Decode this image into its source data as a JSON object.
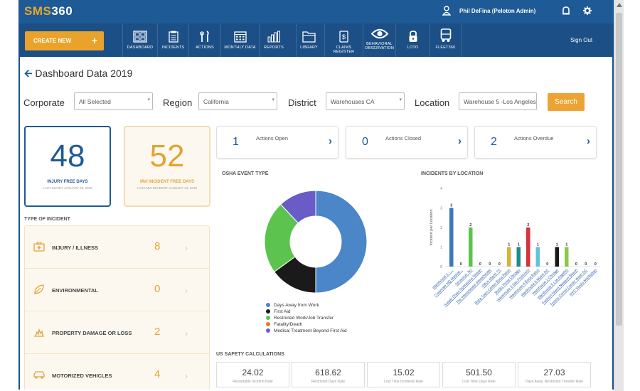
{
  "app": {
    "logo_main": "SMS",
    "logo_num": "360",
    "user": "Phil DeFina (Peloton Admin)",
    "sign_out": "Sign Out"
  },
  "nav": {
    "create_new": "CREATE NEW",
    "items": [
      {
        "label": "DASHBOARD",
        "icon": "dashboard-icon"
      },
      {
        "label": "INCIDENTS",
        "icon": "clipboard-icon"
      },
      {
        "label": "ACTIONS",
        "icon": "tools-icon"
      },
      {
        "label": "MONTHLY DATA",
        "icon": "calendar-icon"
      },
      {
        "label": "REPORTS",
        "icon": "bar-chart-icon"
      },
      {
        "label": "LIBRARY",
        "icon": "folder-icon"
      },
      {
        "label": "CLAIMS REGISTER",
        "icon": "document-dollar-icon"
      },
      {
        "label": "BEHAVIORAL",
        "label2": "OBSERVATION",
        "icon": "eye-icon"
      },
      {
        "label": "LOTO",
        "icon": "lock-icon"
      },
      {
        "label": "FLEET360",
        "icon": "truck-icon"
      }
    ]
  },
  "page": {
    "title": "Dashboard Data 2019"
  },
  "filters": {
    "corporate_label": "Corporate",
    "corporate_value": "All Selected",
    "region_label": "Region",
    "region_value": "California",
    "district_label": "District",
    "district_value": "Warehouses CA",
    "location_label": "Location",
    "location_value": "Warehouse 5 -Los Angeles",
    "search_label": "Search"
  },
  "kpi": {
    "injury": {
      "value": "48",
      "caption": "INJURY FREE DAYS",
      "sub": "LAST INJURY JANUARY 25, 2018",
      "color": "#1e5a96"
    },
    "mvi": {
      "value": "52",
      "caption": "MVI INCIDENT FREE DAYS",
      "sub": "LAST MVI INCIDENT JANUARY 21, 2018",
      "color": "#e3a336"
    }
  },
  "actions": [
    {
      "count": "1",
      "label": "Actions Open"
    },
    {
      "count": "0",
      "label": "Actions Closed"
    },
    {
      "count": "2",
      "label": "Actions Overdue"
    }
  ],
  "type_of_incident": {
    "title": "TYPE OF INCIDENT",
    "rows": [
      {
        "name": "INJURY / ILLNESS",
        "count": "8",
        "icon": "first-aid-icon"
      },
      {
        "name": "ENVIRONMENTAL",
        "count": "0",
        "icon": "leaf-icon"
      },
      {
        "name": "PROPERTY DAMAGE OR LOSS",
        "count": "2",
        "icon": "fire-icon"
      },
      {
        "name": "MOTORIZED VEHICLES",
        "count": "4",
        "icon": "car-icon"
      }
    ]
  },
  "osha": {
    "title": "OSHA EVENT TYPE"
  },
  "incidents_by_location": {
    "title": "INCIDENTS BY LOCATION"
  },
  "safety": {
    "title": "US SAFETY CALCULATIONS",
    "items": [
      {
        "value": "24.02",
        "label": "Recordable Incident Rate"
      },
      {
        "value": "618.62",
        "label": "Restricted Days Rate"
      },
      {
        "value": "15.02",
        "label": "Lost Time Incidents Rate"
      },
      {
        "value": "501.50",
        "label": "Lost Time Days Rate"
      },
      {
        "value": "27.03",
        "label": "Days Away, Restricted Transfer Rate"
      }
    ]
  },
  "chart_data": [
    {
      "type": "pie",
      "title": "OSHA EVENT TYPE",
      "donut": true,
      "categories": [
        "Days Away from Work",
        "First Aid",
        "Restricted Work/Job Transfer",
        "Fatality/Death",
        "Medical Treatment Beyond First Aid"
      ],
      "values": [
        50,
        15,
        23,
        0,
        12
      ],
      "colors": [
        "#4a86c8",
        "#1a1a1a",
        "#5cc34f",
        "#e87a2a",
        "#6a5cc7"
      ],
      "legend": "bottom"
    },
    {
      "type": "bar",
      "title": "INCIDENTS BY LOCATION",
      "ylabel": "Incident per Location",
      "ylim": [
        0,
        4
      ],
      "yticks": [
        0,
        1,
        2,
        3,
        4
      ],
      "categories": [
        "Warehouse 1 - ...",
        "Corporate HQ Manhat...",
        "Secaucus, NJ",
        "Supply Chain Operations Taiwan",
        "The Westchester-Westchester",
        "Office Miami TX",
        "Boca Town Center Boca Raton",
        "Studio Three Chicago",
        "Warehouse 3 San Francisco",
        "Warehouse 4 Boca Raton",
        "Warehouse 6 Miami DC",
        "Warehouse 2 Chicago",
        "Warehouse 5 Los Angeles",
        "Fashion Island Newport Beach",
        "Tysons Corner Center Wash DC",
        "NYC Studio-Manhattan"
      ],
      "values": [
        3,
        0,
        2,
        0,
        0,
        0,
        1,
        1,
        2,
        1,
        0,
        1,
        1,
        0,
        0,
        0
      ],
      "colors": [
        "#3a78c0",
        "#3a78c0",
        "#5cc34f",
        "#5cc34f",
        "#e87a2a",
        "#e87a2a",
        "#d9b23a",
        "#1e8a8a",
        "#d6323a",
        "#5fc4d6",
        "#5fc4d6",
        "#1a1a1a",
        "#8cc84b",
        "#3a78c0",
        "#3a78c0",
        "#3a78c0"
      ]
    }
  ]
}
